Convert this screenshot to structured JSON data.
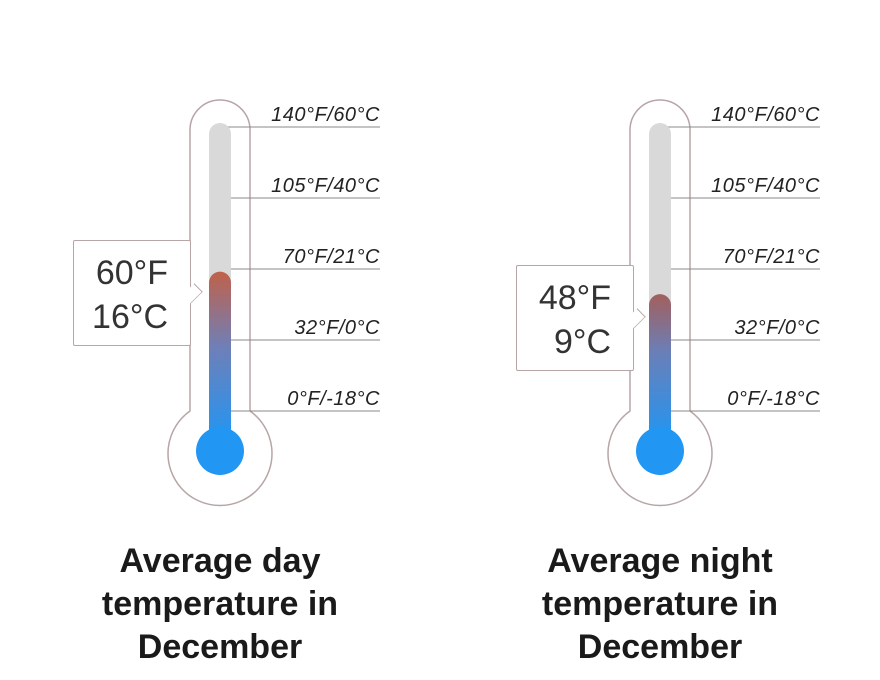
{
  "scale_labels": [
    "140°F/60°C",
    "105°F/40°C",
    "70°F/21°C",
    "32°F/0°C",
    "0°F/-18°C"
  ],
  "colors": {
    "cold": "#2196f3",
    "warm": "#c0614a",
    "tube": "#d9d9d9",
    "outline": "#b8a5a5"
  },
  "thermometers": [
    {
      "reading_f": "60°F",
      "reading_c": "16°C",
      "level_f": 60,
      "caption": "Average day temperature in December"
    },
    {
      "reading_f": "48°F",
      "reading_c": "9°C",
      "level_f": 48,
      "caption": "Average night temperature in December"
    }
  ]
}
